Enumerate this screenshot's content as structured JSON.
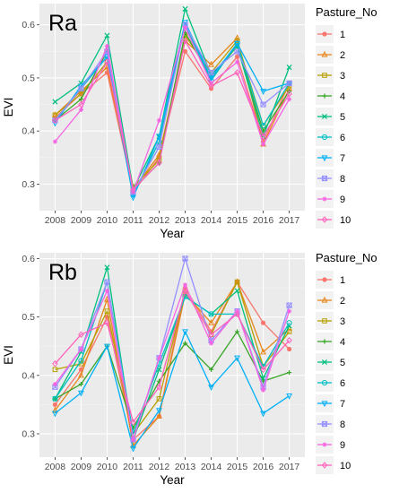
{
  "colors": [
    "#F8766D",
    "#E6861A",
    "#B79F00",
    "#3AA62A",
    "#00BF7D",
    "#00BFC4",
    "#00B0F6",
    "#9590FF",
    "#F564E3",
    "#FF62BC"
  ],
  "chart_data": [
    {
      "type": "line",
      "panel_label": "Ra",
      "xlabel": "Year",
      "ylabel": "EVI",
      "ylim": [
        0.25,
        0.64
      ],
      "yticks": [
        "0.3",
        "0.4",
        "0.5",
        "0.6"
      ],
      "categories": [
        "2008",
        "2009",
        "2010",
        "2011",
        "2012",
        "2013",
        "2014",
        "2015",
        "2016",
        "2017"
      ],
      "legend_title": "Pasture_No",
      "legend_position": "right",
      "grid": true,
      "series": [
        {
          "name": "1",
          "values": [
            0.425,
            0.47,
            0.51,
            0.285,
            0.35,
            0.55,
            0.48,
            0.54,
            0.38,
            0.49
          ]
        },
        {
          "name": "2",
          "values": [
            0.43,
            0.475,
            0.52,
            0.29,
            0.355,
            0.57,
            0.525,
            0.575,
            0.375,
            0.48
          ]
        },
        {
          "name": "3",
          "values": [
            0.43,
            0.47,
            0.53,
            0.295,
            0.345,
            0.58,
            0.51,
            0.57,
            0.41,
            0.485
          ]
        },
        {
          "name": "4",
          "values": [
            0.42,
            0.46,
            0.55,
            0.29,
            0.34,
            0.585,
            0.5,
            0.56,
            0.4,
            0.475
          ]
        },
        {
          "name": "5",
          "values": [
            0.455,
            0.49,
            0.58,
            0.29,
            0.39,
            0.63,
            0.505,
            0.56,
            0.39,
            0.52
          ]
        },
        {
          "name": "6",
          "values": [
            0.42,
            0.48,
            0.54,
            0.28,
            0.38,
            0.6,
            0.495,
            0.565,
            0.41,
            0.49
          ]
        },
        {
          "name": "7",
          "values": [
            0.415,
            0.485,
            0.54,
            0.275,
            0.39,
            0.605,
            0.5,
            0.565,
            0.475,
            0.49
          ]
        },
        {
          "name": "8",
          "values": [
            0.42,
            0.48,
            0.55,
            0.285,
            0.37,
            0.6,
            0.51,
            0.55,
            0.45,
            0.49
          ]
        },
        {
          "name": "9",
          "values": [
            0.38,
            0.44,
            0.56,
            0.285,
            0.42,
            0.595,
            0.49,
            0.53,
            0.375,
            0.46
          ]
        },
        {
          "name": "10",
          "values": [
            0.42,
            0.45,
            0.53,
            0.29,
            0.34,
            0.57,
            0.485,
            0.51,
            0.39,
            0.47
          ]
        }
      ]
    },
    {
      "type": "line",
      "panel_label": "Rb",
      "xlabel": "Year",
      "ylabel": "EVI",
      "ylim": [
        0.26,
        0.61
      ],
      "yticks": [
        "0.3",
        "0.4",
        "0.5",
        "0.6"
      ],
      "categories": [
        "2008",
        "2009",
        "2010",
        "2011",
        "2012",
        "2013",
        "2014",
        "2015",
        "2016",
        "2017"
      ],
      "legend_title": "Pasture_No",
      "legend_position": "right",
      "grid": true,
      "series": [
        {
          "name": "1",
          "values": [
            0.35,
            0.41,
            0.5,
            0.29,
            0.33,
            0.55,
            0.475,
            0.56,
            0.49,
            0.445
          ]
        },
        {
          "name": "2",
          "values": [
            0.34,
            0.4,
            0.53,
            0.28,
            0.33,
            0.54,
            0.49,
            0.56,
            0.44,
            0.48
          ]
        },
        {
          "name": "3",
          "values": [
            0.41,
            0.42,
            0.51,
            0.3,
            0.36,
            0.545,
            0.47,
            0.56,
            0.415,
            0.475
          ]
        },
        {
          "name": "4",
          "values": [
            0.36,
            0.385,
            0.45,
            0.31,
            0.39,
            0.455,
            0.41,
            0.475,
            0.39,
            0.405
          ]
        },
        {
          "name": "5",
          "values": [
            0.36,
            0.44,
            0.585,
            0.29,
            0.41,
            0.535,
            0.505,
            0.545,
            0.395,
            0.485
          ]
        },
        {
          "name": "6",
          "values": [
            0.36,
            0.425,
            0.56,
            0.3,
            0.42,
            0.535,
            0.505,
            0.505,
            0.415,
            0.49
          ]
        },
        {
          "name": "7",
          "values": [
            0.335,
            0.37,
            0.45,
            0.275,
            0.34,
            0.475,
            0.38,
            0.43,
            0.335,
            0.365
          ]
        },
        {
          "name": "8",
          "values": [
            0.38,
            0.445,
            0.56,
            0.29,
            0.43,
            0.6,
            0.46,
            0.51,
            0.38,
            0.52
          ]
        },
        {
          "name": "9",
          "values": [
            0.385,
            0.445,
            0.545,
            0.29,
            0.43,
            0.555,
            0.455,
            0.51,
            0.375,
            0.51
          ]
        },
        {
          "name": "10",
          "values": [
            0.42,
            0.47,
            0.49,
            0.32,
            0.38,
            0.545,
            0.47,
            0.505,
            0.41,
            0.46
          ]
        }
      ]
    }
  ]
}
